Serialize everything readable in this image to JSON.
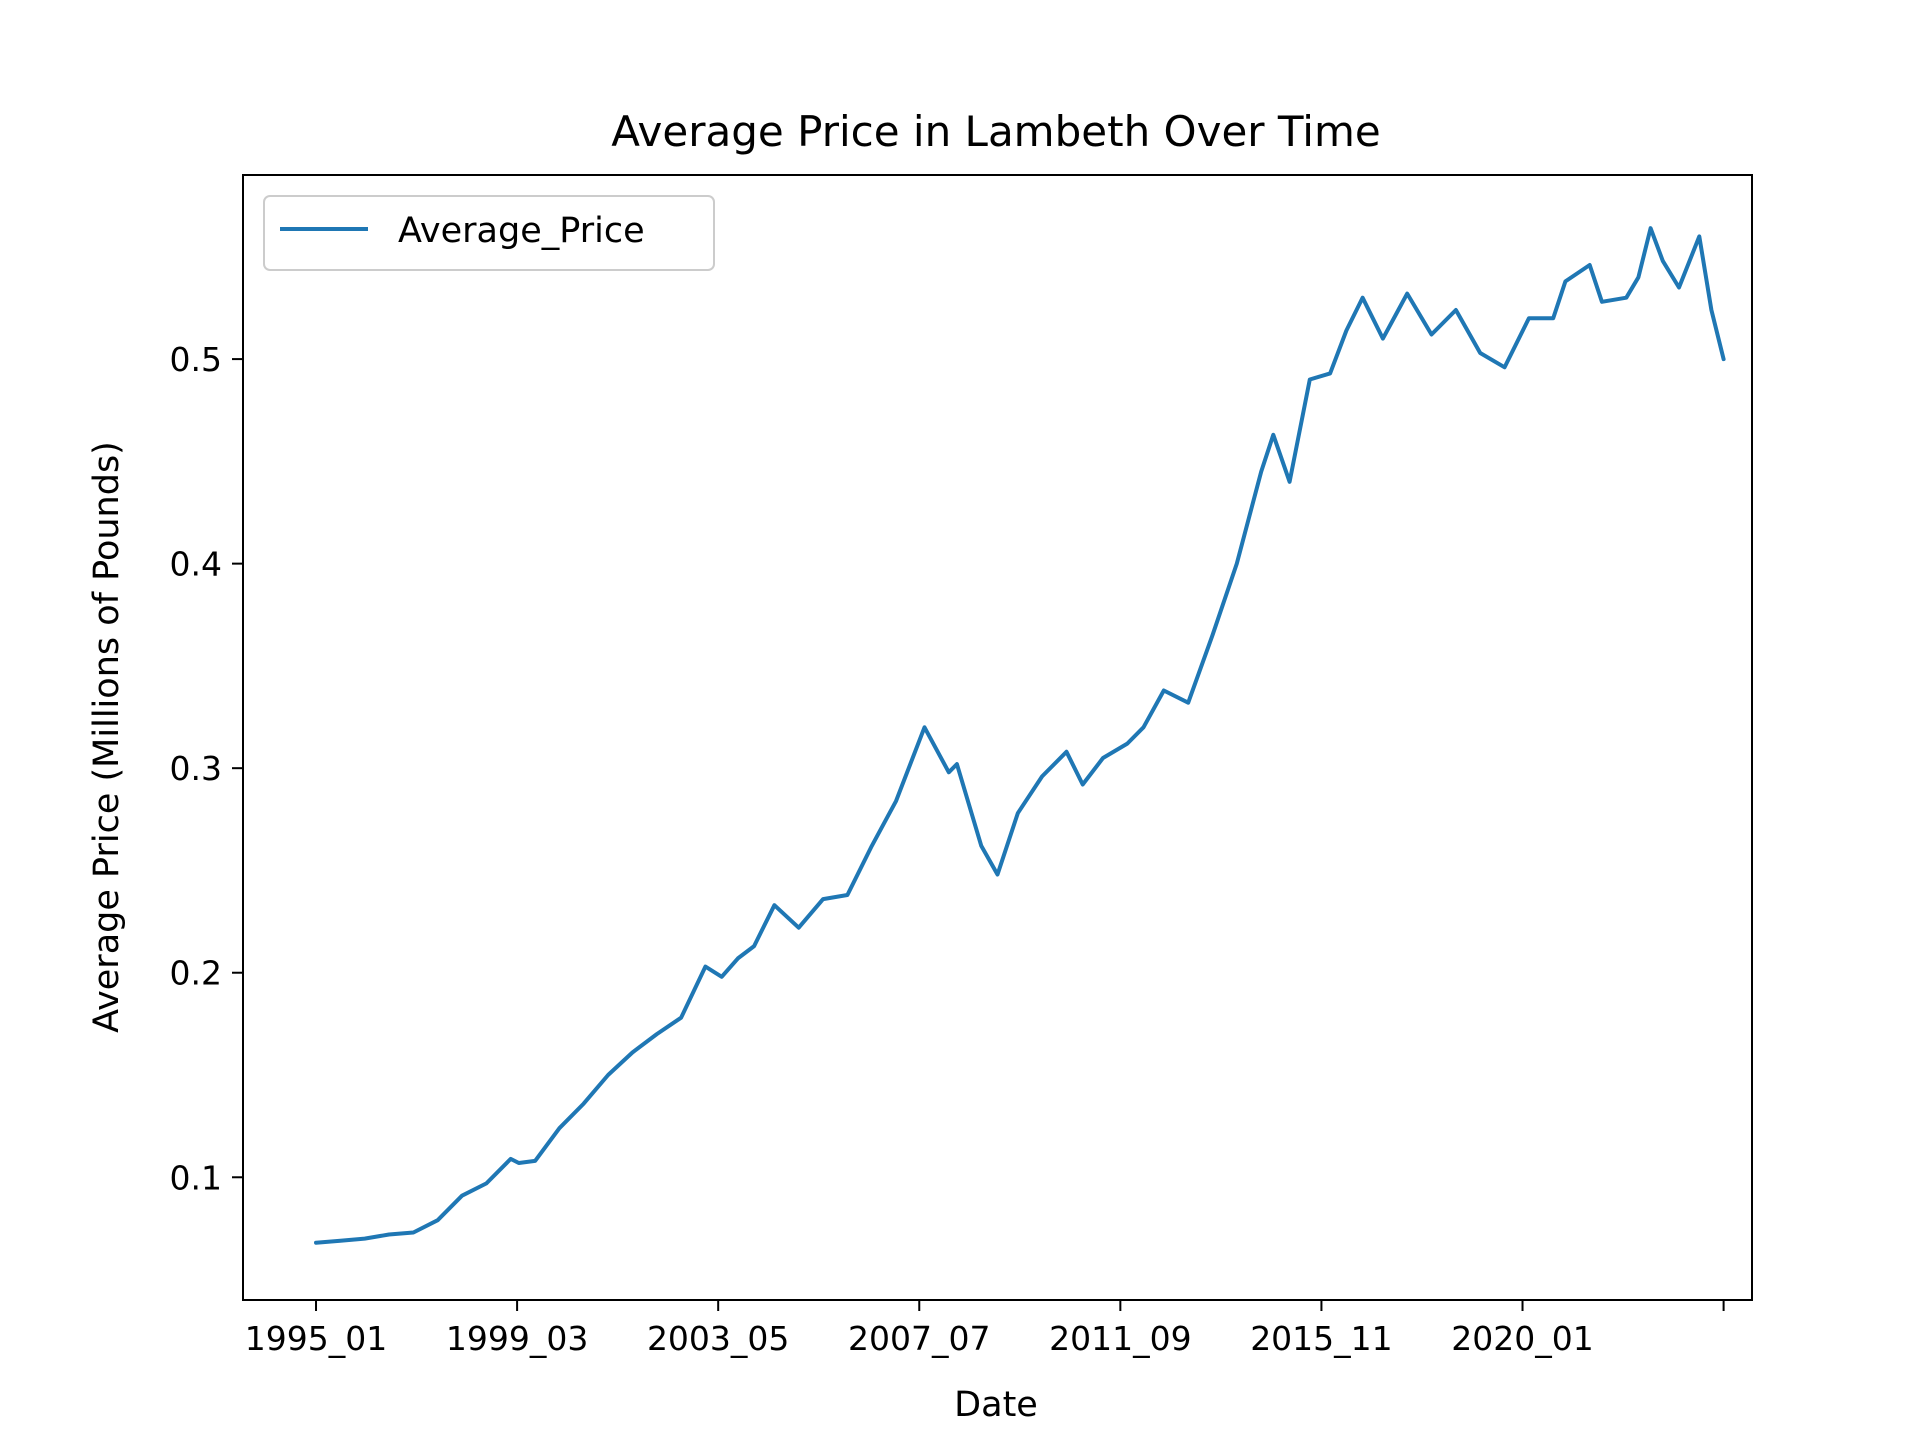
{
  "chart_data": {
    "type": "line",
    "title": "Average Price in Lambeth Over Time",
    "xlabel": "Date",
    "ylabel": "Average Price (Millions of Pounds)",
    "x_tick_labels": [
      "1995_01",
      "1999_03",
      "2003_05",
      "2007_07",
      "2011_09",
      "2015_11",
      "2020_01",
      ""
    ],
    "x_start": "1995-01",
    "x_end": "2023-12",
    "xlim": [
      "1993-07",
      "2024-07"
    ],
    "y_ticks": [
      0.1,
      0.2,
      0.3,
      0.4,
      0.5
    ],
    "y_tick_labels": [
      "0.1",
      "0.2",
      "0.3",
      "0.4",
      "0.5"
    ],
    "ylim": [
      0.04,
      0.59
    ],
    "grid": false,
    "legend": {
      "position": "top-left",
      "entries": [
        "Average_Price"
      ]
    },
    "series": [
      {
        "name": "Average_Price",
        "color": "#1f77b4",
        "points": [
          [
            "1995-01",
            0.068
          ],
          [
            "1995-07",
            0.069
          ],
          [
            "1996-01",
            0.07
          ],
          [
            "1996-07",
            0.072
          ],
          [
            "1997-01",
            0.073
          ],
          [
            "1997-07",
            0.079
          ],
          [
            "1998-01",
            0.091
          ],
          [
            "1998-07",
            0.097
          ],
          [
            "1999-01",
            0.109
          ],
          [
            "1999-03",
            0.107
          ],
          [
            "1999-07",
            0.108
          ],
          [
            "2000-01",
            0.124
          ],
          [
            "2000-07",
            0.136
          ],
          [
            "2001-01",
            0.15
          ],
          [
            "2001-07",
            0.161
          ],
          [
            "2002-01",
            0.17
          ],
          [
            "2002-07",
            0.178
          ],
          [
            "2003-01",
            0.203
          ],
          [
            "2003-05",
            0.198
          ],
          [
            "2003-09",
            0.207
          ],
          [
            "2004-01",
            0.213
          ],
          [
            "2004-06",
            0.233
          ],
          [
            "2004-12",
            0.222
          ],
          [
            "2005-06",
            0.236
          ],
          [
            "2005-12",
            0.238
          ],
          [
            "2006-06",
            0.262
          ],
          [
            "2006-12",
            0.284
          ],
          [
            "2007-07",
            0.32
          ],
          [
            "2008-01",
            0.298
          ],
          [
            "2008-03",
            0.302
          ],
          [
            "2008-09",
            0.262
          ],
          [
            "2009-01",
            0.248
          ],
          [
            "2009-06",
            0.278
          ],
          [
            "2009-12",
            0.296
          ],
          [
            "2010-06",
            0.308
          ],
          [
            "2010-10",
            0.292
          ],
          [
            "2011-03",
            0.305
          ],
          [
            "2011-09",
            0.312
          ],
          [
            "2012-01",
            0.32
          ],
          [
            "2012-06",
            0.338
          ],
          [
            "2012-12",
            0.332
          ],
          [
            "2013-06",
            0.365
          ],
          [
            "2013-12",
            0.4
          ],
          [
            "2014-06",
            0.445
          ],
          [
            "2014-09",
            0.463
          ],
          [
            "2015-01",
            0.44
          ],
          [
            "2015-06",
            0.49
          ],
          [
            "2015-11",
            0.493
          ],
          [
            "2016-03",
            0.514
          ],
          [
            "2016-07",
            0.53
          ],
          [
            "2016-12",
            0.51
          ],
          [
            "2017-06",
            0.532
          ],
          [
            "2017-12",
            0.512
          ],
          [
            "2018-06",
            0.524
          ],
          [
            "2018-12",
            0.503
          ],
          [
            "2019-06",
            0.496
          ],
          [
            "2019-12",
            0.52
          ],
          [
            "2020-06",
            0.52
          ],
          [
            "2020-09",
            0.538
          ],
          [
            "2021-03",
            0.546
          ],
          [
            "2021-06",
            0.528
          ],
          [
            "2021-12",
            0.53
          ],
          [
            "2022-03",
            0.54
          ],
          [
            "2022-06",
            0.564
          ],
          [
            "2022-09",
            0.548
          ],
          [
            "2023-01",
            0.535
          ],
          [
            "2023-06",
            0.56
          ],
          [
            "2023-09",
            0.524
          ],
          [
            "2023-12",
            0.5
          ]
        ]
      }
    ]
  }
}
